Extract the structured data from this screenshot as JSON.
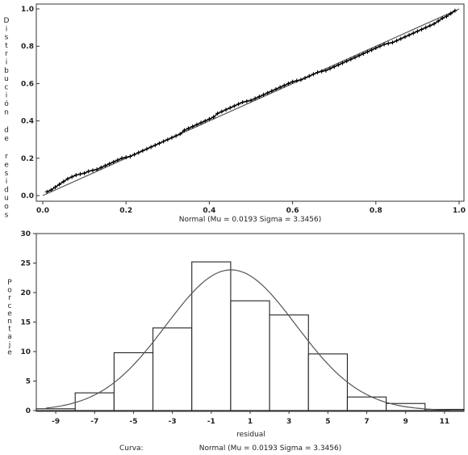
{
  "chart_data": [
    {
      "type": "scatter",
      "panel": "pp-plot",
      "xlabel": "Normal (Mu = 0.0193 Sigma = 3.3456)",
      "ylabel": "Distribución de residuos",
      "xlim": [
        0,
        1
      ],
      "ylim": [
        0,
        1
      ],
      "x_ticks": [
        "0.0",
        "0.2",
        "0.4",
        "0.6",
        "0.8",
        "1.0"
      ],
      "y_ticks": [
        "0.0",
        "0.2",
        "0.4",
        "0.6",
        "0.8",
        "1.0"
      ],
      "reference_line": {
        "x": [
          0,
          1
        ],
        "y": [
          0,
          1
        ]
      },
      "points": {
        "x": [
          0.01,
          0.02,
          0.03,
          0.04,
          0.05,
          0.06,
          0.07,
          0.08,
          0.09,
          0.1,
          0.11,
          0.12,
          0.13,
          0.14,
          0.15,
          0.16,
          0.17,
          0.18,
          0.19,
          0.2,
          0.21,
          0.22,
          0.23,
          0.24,
          0.25,
          0.26,
          0.27,
          0.28,
          0.29,
          0.3,
          0.31,
          0.32,
          0.33,
          0.34,
          0.35,
          0.36,
          0.37,
          0.38,
          0.39,
          0.4,
          0.41,
          0.42,
          0.43,
          0.44,
          0.45,
          0.46,
          0.47,
          0.48,
          0.49,
          0.5,
          0.51,
          0.52,
          0.53,
          0.54,
          0.55,
          0.56,
          0.57,
          0.58,
          0.59,
          0.6,
          0.61,
          0.62,
          0.63,
          0.64,
          0.65,
          0.66,
          0.67,
          0.68,
          0.69,
          0.7,
          0.71,
          0.72,
          0.73,
          0.74,
          0.75,
          0.76,
          0.77,
          0.78,
          0.79,
          0.8,
          0.81,
          0.82,
          0.83,
          0.84,
          0.85,
          0.86,
          0.87,
          0.88,
          0.89,
          0.9,
          0.91,
          0.92,
          0.93,
          0.94,
          0.95,
          0.96,
          0.97,
          0.98,
          0.99
        ],
        "y": [
          0.02,
          0.03,
          0.045,
          0.06,
          0.075,
          0.09,
          0.1,
          0.11,
          0.115,
          0.12,
          0.13,
          0.135,
          0.14,
          0.15,
          0.16,
          0.17,
          0.18,
          0.19,
          0.2,
          0.205,
          0.21,
          0.22,
          0.23,
          0.24,
          0.25,
          0.26,
          0.27,
          0.28,
          0.29,
          0.3,
          0.31,
          0.32,
          0.33,
          0.35,
          0.36,
          0.37,
          0.38,
          0.39,
          0.4,
          0.41,
          0.42,
          0.44,
          0.45,
          0.46,
          0.47,
          0.48,
          0.49,
          0.5,
          0.505,
          0.51,
          0.52,
          0.53,
          0.54,
          0.55,
          0.56,
          0.57,
          0.58,
          0.59,
          0.6,
          0.61,
          0.615,
          0.62,
          0.63,
          0.64,
          0.65,
          0.66,
          0.665,
          0.67,
          0.68,
          0.69,
          0.7,
          0.71,
          0.72,
          0.73,
          0.74,
          0.75,
          0.76,
          0.77,
          0.78,
          0.79,
          0.8,
          0.81,
          0.815,
          0.82,
          0.83,
          0.84,
          0.85,
          0.86,
          0.87,
          0.88,
          0.89,
          0.9,
          0.91,
          0.92,
          0.935,
          0.95,
          0.96,
          0.975,
          0.99
        ]
      }
    },
    {
      "type": "bar",
      "panel": "histogram",
      "xlabel": "residual",
      "ylabel": "Porcentaje",
      "xlim": [
        -10,
        12
      ],
      "ylim": [
        0,
        30
      ],
      "x_ticks": [
        "-9",
        "-7",
        "-5",
        "-3",
        "-1",
        "1",
        "3",
        "5",
        "7",
        "9",
        "11"
      ],
      "x_tick_values": [
        -9,
        -7,
        -5,
        -3,
        -1,
        1,
        3,
        5,
        7,
        9,
        11
      ],
      "y_ticks": [
        "0",
        "5",
        "10",
        "15",
        "20",
        "25",
        "30"
      ],
      "bins": [
        {
          "left": -10,
          "right": -8,
          "value": 0.3
        },
        {
          "left": -8,
          "right": -6,
          "value": 3.0
        },
        {
          "left": -6,
          "right": -4,
          "value": 9.8
        },
        {
          "left": -4,
          "right": -2,
          "value": 14.0
        },
        {
          "left": -2,
          "right": 0,
          "value": 25.2
        },
        {
          "left": 0,
          "right": 2,
          "value": 18.6
        },
        {
          "left": 2,
          "right": 4,
          "value": 16.2
        },
        {
          "left": 4,
          "right": 6,
          "value": 9.6
        },
        {
          "left": 6,
          "right": 8,
          "value": 2.3
        },
        {
          "left": 8,
          "right": 10,
          "value": 1.2
        },
        {
          "left": 10,
          "right": 12,
          "value": 0.2
        }
      ],
      "normal_curve": {
        "mu": 0.0193,
        "sigma": 3.3456,
        "bin_width": 2
      },
      "curve_label": "Curva:",
      "curve_legend": "Normal (Mu = 0.0193 Sigma = 3.3456)"
    }
  ]
}
